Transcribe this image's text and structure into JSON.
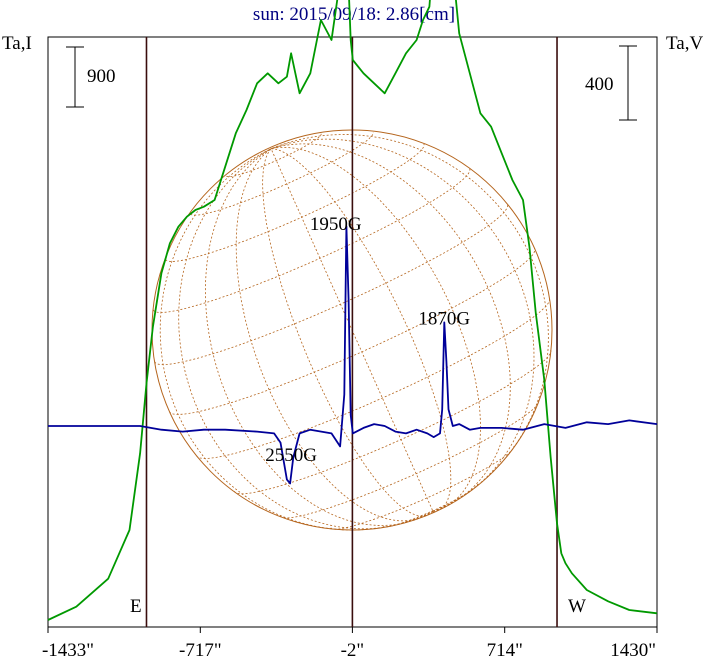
{
  "chart_data": {
    "type": "line",
    "title": "sun: 2015/09/18: 2.86[cm]",
    "ylabel_left": "Ta,I",
    "ylabel_right": "Ta,V",
    "x_ticks": [
      "-1433\"",
      "-717\"",
      "-2\"",
      "714\"",
      "1430\""
    ],
    "x_tick_values": [
      -1433,
      -717,
      -2,
      714,
      1430
    ],
    "xlim": [
      -1433,
      1430
    ],
    "scale_bar_left": "900",
    "scale_bar_right": "400",
    "limb_labels": {
      "east": "E",
      "west": "W"
    },
    "vertical_markers": [
      -970,
      -2,
      960
    ],
    "annotations": [
      {
        "text": "1950G",
        "x": -80,
        "y_V": 1060
      },
      {
        "text": "1870G",
        "x": 430,
        "y_V": 550
      },
      {
        "text": "2550G",
        "x": -290,
        "y_V": -190
      }
    ],
    "series": [
      {
        "name": "I",
        "color": "#009900",
        "x": [
          -1433,
          -1300,
          -1150,
          -1050,
          -1000,
          -970,
          -940,
          -900,
          -860,
          -820,
          -780,
          -740,
          -700,
          -650,
          -600,
          -550,
          -500,
          -450,
          -400,
          -350,
          -310,
          -290,
          -250,
          -200,
          -150,
          -100,
          -60,
          -40,
          -30,
          -20,
          -10,
          0,
          50,
          100,
          150,
          200,
          250,
          300,
          330,
          360,
          390,
          420,
          440,
          460,
          500,
          550,
          600,
          650,
          700,
          750,
          800,
          830,
          860,
          900,
          930,
          960,
          980,
          1000,
          1030,
          1100,
          1200,
          1300,
          1430
        ],
        "y": [
          0,
          200,
          620,
          1350,
          2500,
          3550,
          4400,
          5200,
          5650,
          5900,
          6050,
          6150,
          6200,
          6300,
          6800,
          7300,
          7650,
          8050,
          8200,
          8050,
          8150,
          8500,
          7900,
          8200,
          9000,
          8700,
          9600,
          11400,
          11550,
          9500,
          8700,
          8400,
          8200,
          8050,
          7900,
          8200,
          8500,
          8700,
          9000,
          9200,
          10500,
          10100,
          11300,
          10100,
          8800,
          8200,
          7600,
          7400,
          7000,
          6600,
          6300,
          5600,
          4600,
          3600,
          2450,
          1450,
          1000,
          850,
          700,
          450,
          280,
          150,
          100
        ]
      },
      {
        "name": "V",
        "color": "#000099",
        "x": [
          -1433,
          -1200,
          -1000,
          -900,
          -800,
          -700,
          -600,
          -450,
          -370,
          -340,
          -310,
          -295,
          -280,
          -250,
          -200,
          -100,
          -60,
          -40,
          -30,
          -20,
          -10,
          0,
          50,
          100,
          150,
          200,
          250,
          300,
          350,
          380,
          410,
          420,
          430,
          440,
          450,
          470,
          500,
          550,
          600,
          700,
          800,
          900,
          1000,
          1100,
          1200,
          1300,
          1430
        ],
        "y": [
          0,
          0,
          0,
          -20,
          -30,
          -20,
          -20,
          -30,
          -40,
          -90,
          -290,
          -310,
          -170,
          -40,
          -20,
          -40,
          -110,
          170,
          1080,
          680,
          60,
          -40,
          -10,
          10,
          0,
          -30,
          -40,
          -20,
          -40,
          -60,
          -40,
          90,
          560,
          350,
          90,
          0,
          10,
          -20,
          -10,
          -10,
          -20,
          10,
          -10,
          20,
          10,
          30,
          10
        ]
      }
    ]
  }
}
